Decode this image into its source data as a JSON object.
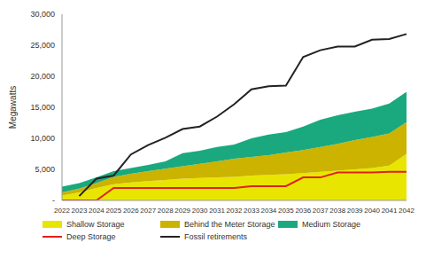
{
  "chart_data": {
    "type": "area",
    "y_label": "Megawatts",
    "categories": [
      "2022",
      "2023",
      "2024",
      "2025",
      "2026",
      "2027",
      "2028",
      "2029",
      "2030",
      "2031",
      "2032",
      "2033",
      "2034",
      "2035",
      "2036",
      "2037",
      "2038",
      "2039",
      "2040",
      "2041",
      "2042"
    ],
    "stacked": true,
    "legend": "bottom",
    "grid": false,
    "ylim": [
      0,
      30000
    ],
    "yticks": [
      {
        "value": 0,
        "label": "-"
      },
      {
        "value": 5000,
        "label": "5,000"
      },
      {
        "value": 10000,
        "label": "10,000"
      },
      {
        "value": 15000,
        "label": "15,000"
      },
      {
        "value": 20000,
        "label": "20,000"
      },
      {
        "value": 25000,
        "label": "25,000"
      },
      {
        "value": 30000,
        "label": "30,000"
      }
    ],
    "series": [
      {
        "name": "Shallow Storage",
        "type": "area",
        "color": "#e8e600",
        "values": [
          800,
          1300,
          2000,
          2600,
          2900,
          3100,
          3300,
          3500,
          3600,
          3700,
          3800,
          4000,
          4100,
          4200,
          4400,
          4600,
          4800,
          5000,
          5200,
          5600,
          7500
        ]
      },
      {
        "name": "Behind the Meter Storage",
        "type": "area",
        "color": "#cbb300",
        "values": [
          500,
          600,
          800,
          1200,
          1400,
          1600,
          1800,
          2000,
          2300,
          2600,
          2900,
          3000,
          3200,
          3500,
          3700,
          4000,
          4300,
          4700,
          5000,
          5200,
          5100
        ]
      },
      {
        "name": "Medium Storage",
        "type": "area",
        "color": "#1aa97e",
        "values": [
          900,
          900,
          900,
          900,
          900,
          1000,
          1200,
          2100,
          2100,
          2300,
          2300,
          3000,
          3300,
          3300,
          3800,
          4400,
          4600,
          4600,
          4600,
          4800,
          4900
        ]
      },
      {
        "name": "Deep Storage",
        "type": "line",
        "color": "#e0201b",
        "values": [
          0,
          0,
          0,
          2000,
          2000,
          2000,
          2000,
          2000,
          2000,
          2000,
          2000,
          2300,
          2300,
          2300,
          3700,
          3700,
          4500,
          4500,
          4500,
          4600,
          4600
        ]
      },
      {
        "name": "Fossil retirements",
        "type": "line",
        "color": "#222222",
        "values": [
          null,
          700,
          3500,
          4000,
          7400,
          8900,
          10100,
          11500,
          11900,
          13500,
          15500,
          17900,
          18400,
          18500,
          23100,
          24200,
          24800,
          24800,
          25900,
          26000,
          26800
        ]
      }
    ]
  }
}
